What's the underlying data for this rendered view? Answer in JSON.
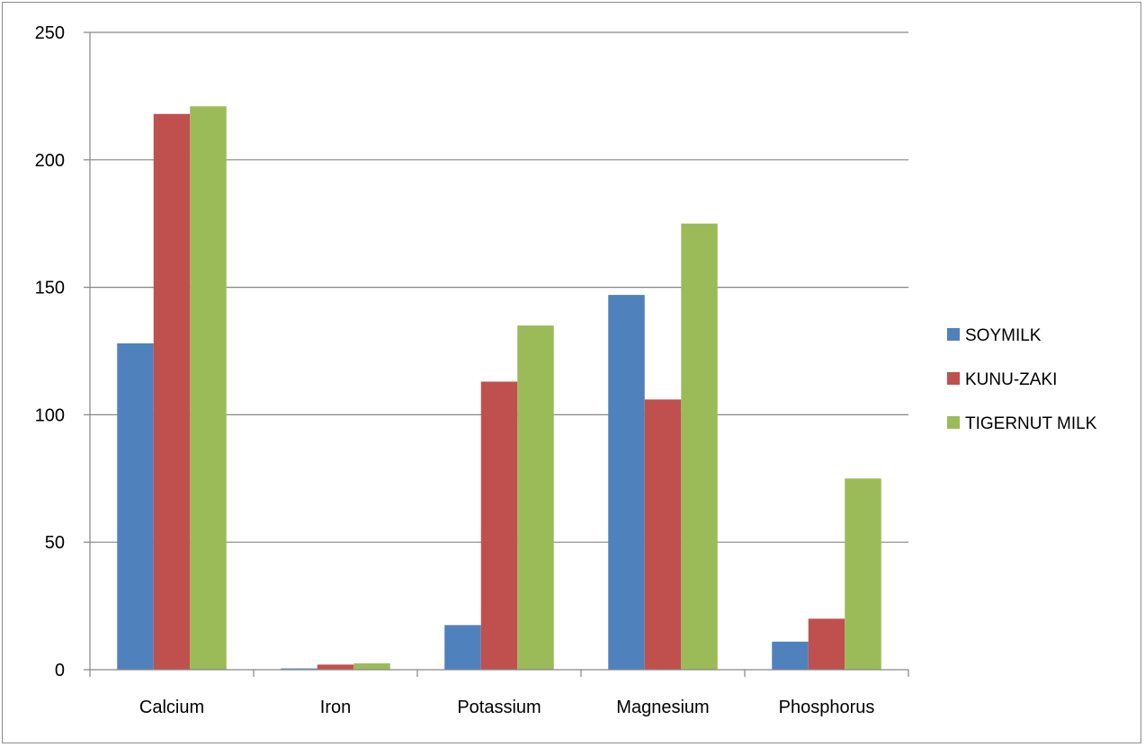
{
  "chart_data": {
    "type": "bar",
    "title": "",
    "xlabel": "",
    "ylabel": "",
    "categories": [
      "Calcium",
      "Iron",
      "Potassium",
      "Magnesium",
      "Phosphorus"
    ],
    "series": [
      {
        "name": "SOYMILK",
        "color": "#4f81bd",
        "values": [
          128,
          0.5,
          17.5,
          147,
          11
        ]
      },
      {
        "name": "KUNU-ZAKI",
        "color": "#c0504d",
        "values": [
          218,
          2,
          113,
          106,
          20
        ]
      },
      {
        "name": "TIGERNUT MILK",
        "color": "#9bbb59",
        "values": [
          221,
          2.5,
          135,
          175,
          75
        ]
      }
    ],
    "ylim": [
      0,
      250
    ],
    "yticks": [
      0,
      50,
      100,
      150,
      200,
      250
    ],
    "grid": true,
    "legend": "right"
  }
}
